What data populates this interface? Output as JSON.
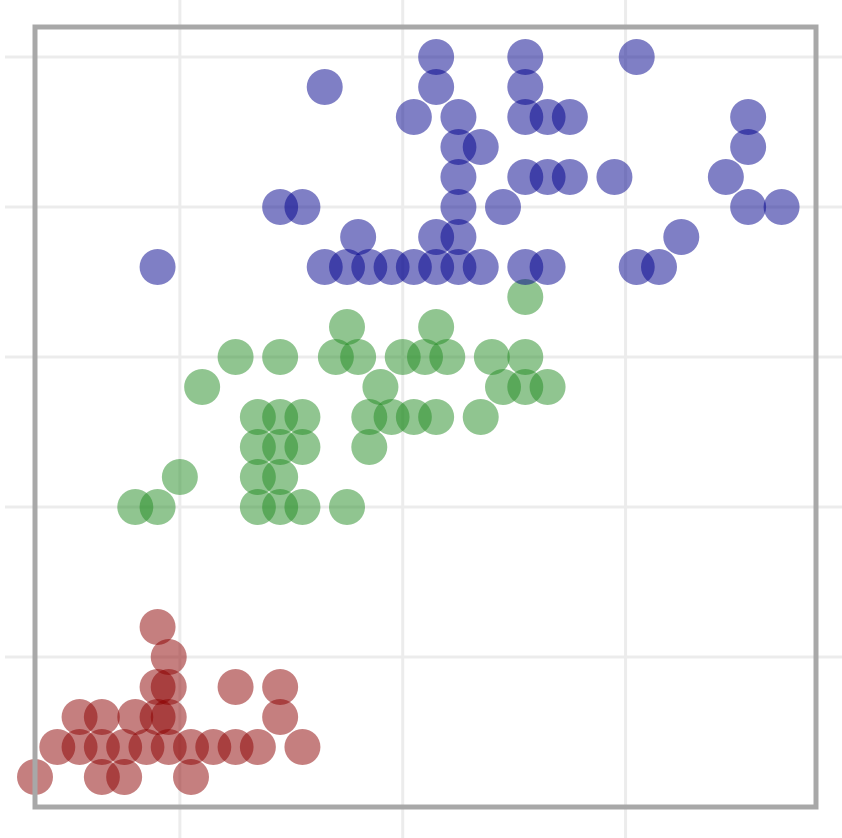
{
  "chart_data": {
    "type": "scatter",
    "title": "",
    "xlabel": "",
    "ylabel": "",
    "xlim": [
      0.7,
      7.7
    ],
    "ylim": [
      0.0,
      2.6
    ],
    "grid": true,
    "legend": "none",
    "series": [
      {
        "color": "#8B0000",
        "points": [
          [
            0.7,
            0.1
          ],
          [
            0.9,
            0.2
          ],
          [
            1.1,
            0.2
          ],
          [
            1.3,
            0.2
          ],
          [
            1.5,
            0.2
          ],
          [
            1.7,
            0.2
          ],
          [
            1.9,
            0.2
          ],
          [
            2.1,
            0.2
          ],
          [
            2.3,
            0.2
          ],
          [
            2.5,
            0.2
          ],
          [
            2.7,
            0.2
          ],
          [
            3.1,
            0.2
          ],
          [
            1.1,
            0.3
          ],
          [
            1.3,
            0.3
          ],
          [
            1.6,
            0.3
          ],
          [
            1.8,
            0.3
          ],
          [
            1.9,
            0.3
          ],
          [
            2.9,
            0.3
          ],
          [
            1.8,
            0.4
          ],
          [
            1.9,
            0.4
          ],
          [
            2.5,
            0.4
          ],
          [
            2.9,
            0.4
          ],
          [
            1.9,
            0.5
          ],
          [
            1.8,
            0.6
          ],
          [
            1.3,
            0.1
          ],
          [
            1.5,
            0.1
          ],
          [
            2.1,
            0.1
          ]
        ]
      },
      {
        "color": "#228B22",
        "points": [
          [
            1.6,
            1.0
          ],
          [
            1.8,
            1.0
          ],
          [
            2.7,
            1.0
          ],
          [
            2.9,
            1.0
          ],
          [
            3.1,
            1.0
          ],
          [
            3.5,
            1.0
          ],
          [
            2.0,
            1.1
          ],
          [
            2.7,
            1.1
          ],
          [
            2.9,
            1.1
          ],
          [
            2.7,
            1.2
          ],
          [
            2.9,
            1.2
          ],
          [
            3.1,
            1.2
          ],
          [
            3.7,
            1.2
          ],
          [
            2.7,
            1.3
          ],
          [
            2.9,
            1.3
          ],
          [
            3.1,
            1.3
          ],
          [
            3.7,
            1.3
          ],
          [
            3.9,
            1.3
          ],
          [
            4.1,
            1.3
          ],
          [
            4.3,
            1.3
          ],
          [
            4.7,
            1.3
          ],
          [
            2.2,
            1.4
          ],
          [
            3.8,
            1.4
          ],
          [
            4.9,
            1.4
          ],
          [
            5.1,
            1.4
          ],
          [
            5.3,
            1.4
          ],
          [
            2.5,
            1.5
          ],
          [
            2.9,
            1.5
          ],
          [
            3.4,
            1.5
          ],
          [
            3.6,
            1.5
          ],
          [
            4.0,
            1.5
          ],
          [
            4.2,
            1.5
          ],
          [
            4.4,
            1.5
          ],
          [
            4.8,
            1.5
          ],
          [
            5.1,
            1.5
          ],
          [
            3.5,
            1.6
          ],
          [
            4.3,
            1.6
          ],
          [
            5.1,
            1.7
          ]
        ]
      },
      {
        "color": "#00008B",
        "points": [
          [
            1.8,
            1.8
          ],
          [
            3.3,
            1.8
          ],
          [
            3.5,
            1.8
          ],
          [
            3.7,
            1.8
          ],
          [
            3.9,
            1.8
          ],
          [
            4.1,
            1.8
          ],
          [
            4.3,
            1.8
          ],
          [
            4.5,
            1.8
          ],
          [
            4.7,
            1.8
          ],
          [
            5.1,
            1.8
          ],
          [
            6.1,
            1.8
          ],
          [
            6.3,
            1.8
          ],
          [
            3.6,
            1.9
          ],
          [
            4.3,
            1.9
          ],
          [
            4.5,
            1.9
          ],
          [
            6.5,
            1.9
          ],
          [
            2.9,
            2.0
          ],
          [
            3.1,
            2.0
          ],
          [
            4.9,
            2.0
          ],
          [
            7.1,
            2.0
          ],
          [
            7.4,
            2.0
          ],
          [
            4.5,
            2.1
          ],
          [
            5.1,
            2.1
          ],
          [
            5.3,
            2.1
          ],
          [
            5.5,
            2.1
          ],
          [
            5.9,
            2.1
          ],
          [
            6.9,
            2.1
          ],
          [
            4.5,
            2.2
          ],
          [
            4.7,
            2.2
          ],
          [
            7.1,
            2.2
          ],
          [
            4.1,
            2.3
          ],
          [
            4.5,
            2.3
          ],
          [
            5.1,
            2.3
          ],
          [
            5.3,
            2.3
          ],
          [
            5.5,
            2.3
          ],
          [
            7.1,
            2.3
          ],
          [
            3.3,
            2.4
          ],
          [
            4.3,
            2.4
          ],
          [
            5.1,
            2.4
          ],
          [
            4.3,
            2.5
          ],
          [
            5.1,
            2.5
          ],
          [
            6.1,
            2.5
          ],
          [
            5.3,
            1.8
          ],
          [
            4.5,
            2.0
          ]
        ]
      }
    ]
  }
}
